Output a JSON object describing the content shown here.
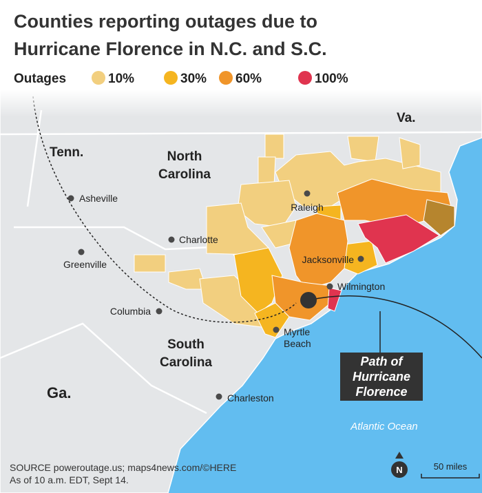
{
  "title": {
    "lines": [
      "Counties reporting outages due to",
      "Hurricane Florence in N.C. and S.C."
    ]
  },
  "legend": {
    "label": "Outages",
    "items": [
      "10%",
      "30%",
      "60%",
      "100%"
    ]
  },
  "map_labels": {
    "va": "Va.",
    "tenn": "Tenn.",
    "north_carolina": [
      "North",
      "Carolina"
    ],
    "south_carolina": [
      "South",
      "Carolina"
    ],
    "ga": "Ga.",
    "ocean": "Atlantic Ocean"
  },
  "cities": {
    "asheville": "Asheville",
    "charlotte": "Charlotte",
    "raleigh": "Raleigh",
    "greenville": "Greenville",
    "jacksonville": "Jacksonville",
    "wilmington": "Wilmington",
    "columbia": "Columbia",
    "myrtle_beach": [
      "Myrtle",
      "Beach"
    ],
    "charleston": "Charleston"
  },
  "callout": {
    "lines": [
      "Path of",
      "Hurricane",
      "Florence"
    ]
  },
  "compass": "N",
  "scale": "50 miles",
  "source": {
    "lines": [
      "SOURCE poweroutage.us; maps4news.com/©HERE",
      "As of 10 a.m. EDT, Sept 14."
    ]
  }
}
